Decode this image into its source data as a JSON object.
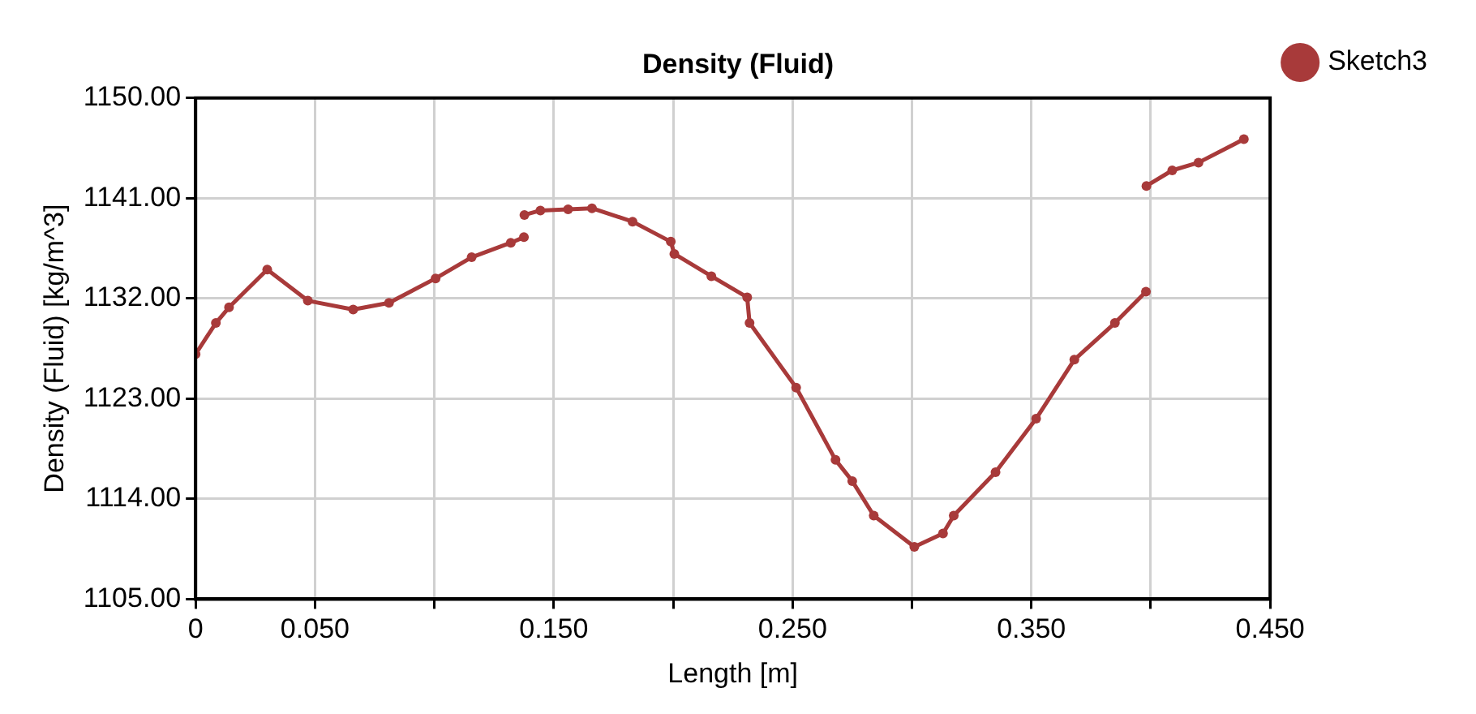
{
  "chart_data": {
    "type": "line",
    "title": "Density (Fluid)",
    "xlabel": "Length [m]",
    "ylabel": "Density (Fluid) [kg/m^3]",
    "xlim": [
      0,
      0.45
    ],
    "xticks": [
      0,
      {
        "value": 0.05,
        "label": "0.050"
      },
      {
        "value": 0.1,
        "label": null
      },
      {
        "value": 0.15,
        "label": "0.150"
      },
      {
        "value": 0.2,
        "label": null
      },
      {
        "value": 0.25,
        "label": "0.250"
      },
      {
        "value": 0.3,
        "label": null
      },
      {
        "value": 0.35,
        "label": "0.350"
      },
      {
        "value": 0.4,
        "label": null
      },
      {
        "value": 0.45,
        "label": "0.450"
      }
    ],
    "ylim": [
      1105,
      1150
    ],
    "yticks": [
      {
        "value": 1105,
        "label": "1105.00"
      },
      {
        "value": 1114,
        "label": "1114.00"
      },
      {
        "value": 1123,
        "label": "1123.00"
      },
      {
        "value": 1132,
        "label": "1132.00"
      },
      {
        "value": 1141,
        "label": "1141.00"
      },
      {
        "value": 1150,
        "label": "1150.00"
      }
    ],
    "grid": true,
    "legend": "top right",
    "marker": "circle",
    "line_style": "solid",
    "series": [
      {
        "name": "Sketch3",
        "color": "#a83a3a",
        "x": [
          0,
          0.0085,
          0.014,
          0.03,
          0.047,
          0.066,
          0.081,
          0.1005,
          0.1156,
          0.132,
          0.1375,
          0.1376,
          0.1377,
          0.1444,
          0.156,
          0.166,
          0.183,
          0.199,
          0.2005,
          0.216,
          0.231,
          0.232,
          0.2515,
          0.268,
          0.275,
          0.284,
          0.301,
          0.313,
          0.3175,
          0.335,
          0.352,
          0.368,
          0.385,
          0.398,
          0.3981,
          0.3982,
          0.409,
          0.42,
          0.439
        ],
        "values": [
          1127,
          1129.8,
          1131.2,
          1134.6,
          1131.8,
          1131,
          1131.6,
          1133.8,
          1135.7,
          1137,
          1137.5,
          null,
          1139.5,
          1139.9,
          1140,
          1140.1,
          1138.9,
          1137.1,
          1136,
          1134,
          1132.1,
          1129.8,
          1124,
          1117.5,
          1115.6,
          1112.5,
          1109.7,
          1110.9,
          1112.5,
          1116.4,
          1121.2,
          1126.5,
          1129.8,
          1132.6,
          null,
          1142.1,
          1143.5,
          1144.2,
          1146.3
        ]
      }
    ]
  }
}
